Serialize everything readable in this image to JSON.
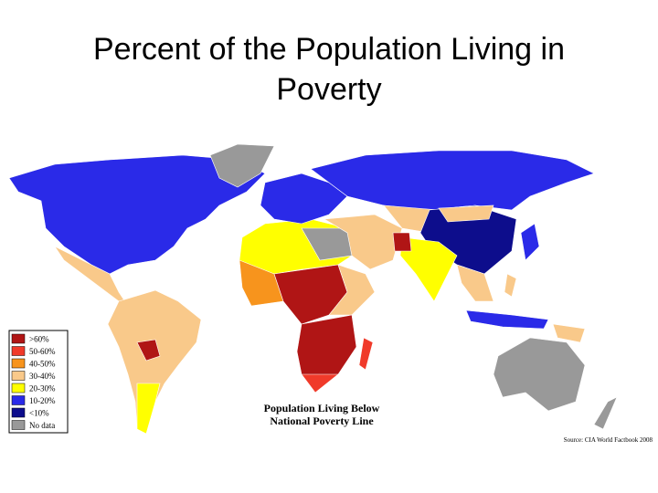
{
  "title": "Percent of the Population Living in Poverty",
  "map": {
    "caption": [
      "Population Living Below",
      "National Poverty Line"
    ],
    "source": "Source: CIA World Factbook 2008",
    "legend": [
      {
        "label": ">60%",
        "color": "#b01515"
      },
      {
        "label": "50-60%",
        "color": "#f03a2a"
      },
      {
        "label": "40-50%",
        "color": "#f7941d"
      },
      {
        "label": "30-40%",
        "color": "#f9c98a"
      },
      {
        "label": "20-30%",
        "color": "#ffff00"
      },
      {
        "label": "10-20%",
        "color": "#2a2ae8"
      },
      {
        "label": "<10%",
        "color": "#0d0d8c"
      },
      {
        "label": "No data",
        "color": "#999999"
      }
    ]
  }
}
